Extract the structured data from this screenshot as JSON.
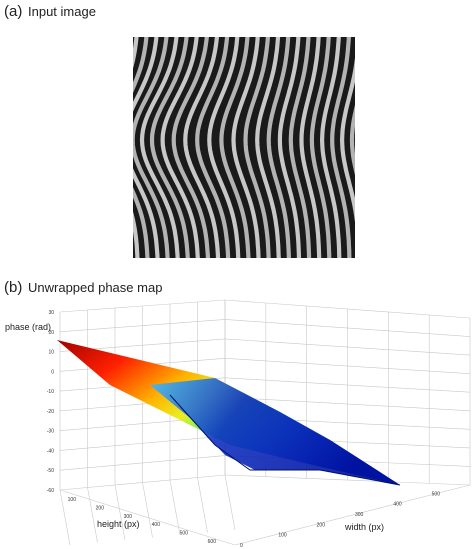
{
  "panel_a": {
    "label": "(a)",
    "title": "Input image"
  },
  "panel_b": {
    "label": "(b)",
    "title": "Unwrapped phase map",
    "z_axis_label": "phase (rad)",
    "height_axis_label": "height (px)",
    "width_axis_label": "width (px)",
    "z_ticks": [
      "30",
      "20",
      "10",
      "0",
      "-10",
      "-20",
      "-30",
      "-40",
      "-50",
      "-60"
    ],
    "height_ticks": [
      "100",
      "200",
      "300",
      "400",
      "500",
      "600"
    ],
    "width_ticks": [
      "0",
      "100",
      "200",
      "300",
      "400",
      "500"
    ]
  }
}
